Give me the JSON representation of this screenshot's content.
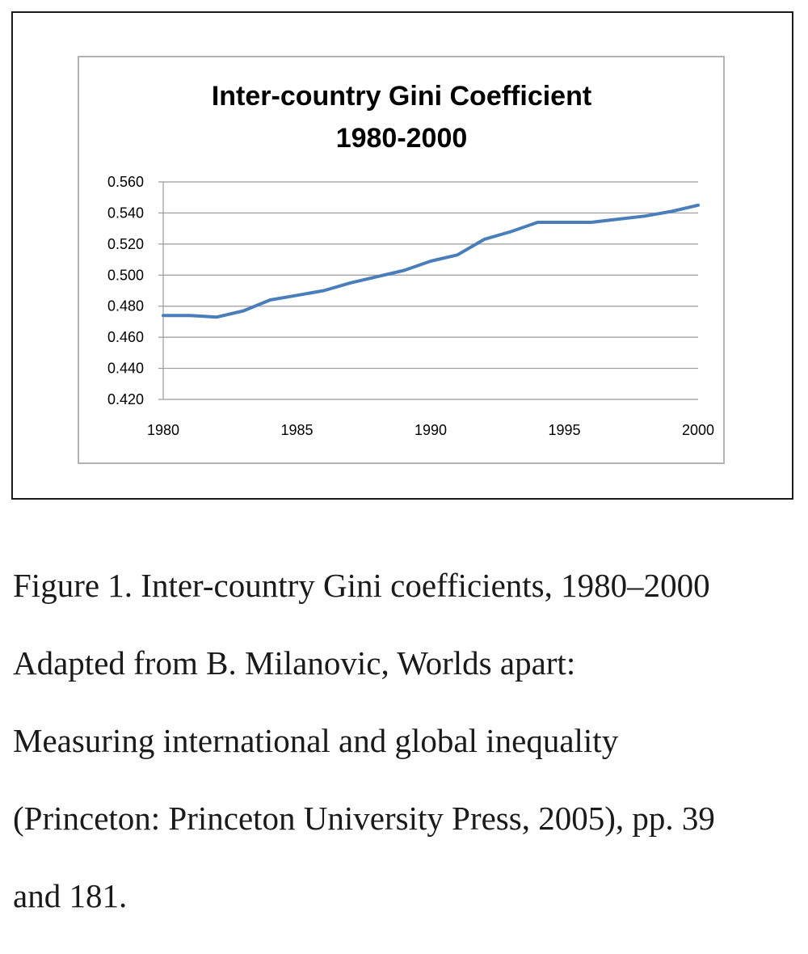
{
  "chart_data": {
    "type": "line",
    "title": [
      "Inter-country Gini Coefficient",
      "1980-2000"
    ],
    "xlabel": "",
    "ylabel": "",
    "xlim": [
      1980,
      2000
    ],
    "ylim": [
      0.42,
      0.56
    ],
    "x_ticks": [
      "1980",
      "1985",
      "1990",
      "1995",
      "2000"
    ],
    "y_ticks": [
      "0.560",
      "0.540",
      "0.520",
      "0.500",
      "0.480",
      "0.460",
      "0.440",
      "0.420"
    ],
    "grid": true,
    "legend": "none",
    "series": [
      {
        "color": "#4a7ebb",
        "x": [
          1980,
          1981,
          1982,
          1983,
          1984,
          1985,
          1986,
          1987,
          1988,
          1989,
          1990,
          1991,
          1992,
          1993,
          1994,
          1995,
          1996,
          1997,
          1998,
          1999,
          2000
        ],
        "y": [
          0.474,
          0.474,
          0.473,
          0.477,
          0.484,
          0.487,
          0.49,
          0.495,
          0.499,
          0.503,
          0.509,
          0.513,
          0.523,
          0.528,
          0.534,
          0.534,
          0.534,
          0.536,
          0.538,
          0.541,
          0.545
        ]
      }
    ]
  },
  "caption": {
    "lines": [
      "Figure 1. Inter-country Gini coefficients, 1980–2000",
      "Adapted from B. Milanovic, Worlds apart:",
      "Measuring international and global inequality",
      "(Princeton: Princeton University Press, 2005), pp. 39",
      "and 181."
    ]
  }
}
